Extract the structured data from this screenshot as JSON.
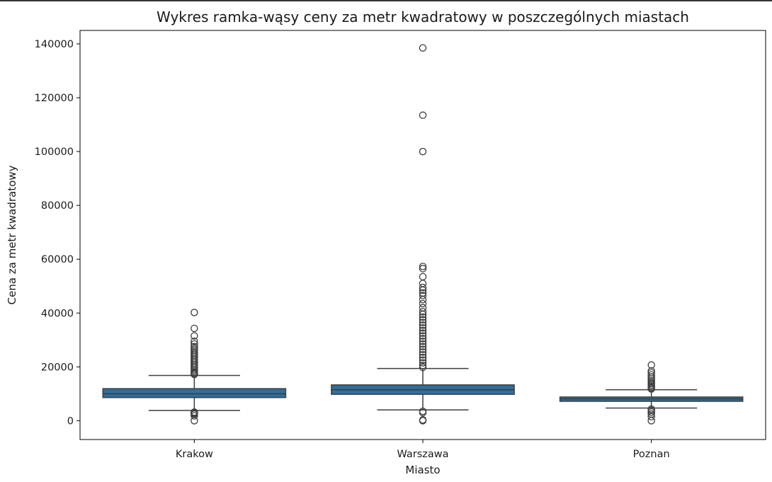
{
  "colors": {
    "box_fill": "#2f6e9e",
    "box_edge": "#3d3d3d",
    "axis": "#000000",
    "background": "#ffffff"
  },
  "chart_data": {
    "type": "box",
    "title": "Wykres ramka-wąsy ceny za metr kwadratowy w poszczególnych miastach",
    "xlabel": "Miasto",
    "ylabel": "Cena za metr kwadratowy",
    "ylim": [
      -7000,
      145000
    ],
    "yticks": [
      0,
      20000,
      40000,
      60000,
      80000,
      100000,
      120000,
      140000
    ],
    "ytick_labels": [
      "0",
      "20000",
      "40000",
      "60000",
      "80000",
      "100000",
      "120000",
      "140000"
    ],
    "grid": false,
    "categories": [
      "Krakow",
      "Warszawa",
      "Poznan"
    ],
    "boxes": [
      {
        "category": "Krakow",
        "whisker_low": 3800,
        "q1": 8600,
        "median": 10000,
        "q3": 11900,
        "whisker_high": 16800,
        "outliers": [
          0,
          1800,
          2400,
          2700,
          3000,
          3200,
          17200,
          17600,
          18000,
          18500,
          19000,
          19600,
          20200,
          20800,
          21400,
          22000,
          22600,
          23200,
          23800,
          24400,
          25000,
          25600,
          26200,
          26800,
          27500,
          28500,
          29500,
          31500,
          34300,
          40200
        ]
      },
      {
        "category": "Warszawa",
        "whisker_low": 4000,
        "q1": 9800,
        "median": 11500,
        "q3": 13300,
        "whisker_high": 19400,
        "outliers": [
          0,
          300,
          3000,
          3500,
          19800,
          20500,
          21500,
          22500,
          23500,
          24500,
          25500,
          26500,
          27500,
          28500,
          29500,
          30500,
          31500,
          32500,
          33500,
          34500,
          35500,
          36500,
          37500,
          38500,
          39500,
          40500,
          42000,
          43500,
          45000,
          46500,
          47500,
          48500,
          49500,
          51000,
          53500,
          56500,
          57300,
          100000,
          113500,
          138500
        ]
      },
      {
        "category": "Poznan",
        "whisker_low": 4700,
        "q1": 7200,
        "median": 8100,
        "q3": 8800,
        "whisker_high": 11500,
        "outliers": [
          0,
          1500,
          2500,
          3200,
          3800,
          4300,
          11800,
          12200,
          12700,
          13200,
          13700,
          14200,
          14800,
          15500,
          16200,
          17000,
          17800,
          18500,
          20700
        ]
      }
    ]
  }
}
